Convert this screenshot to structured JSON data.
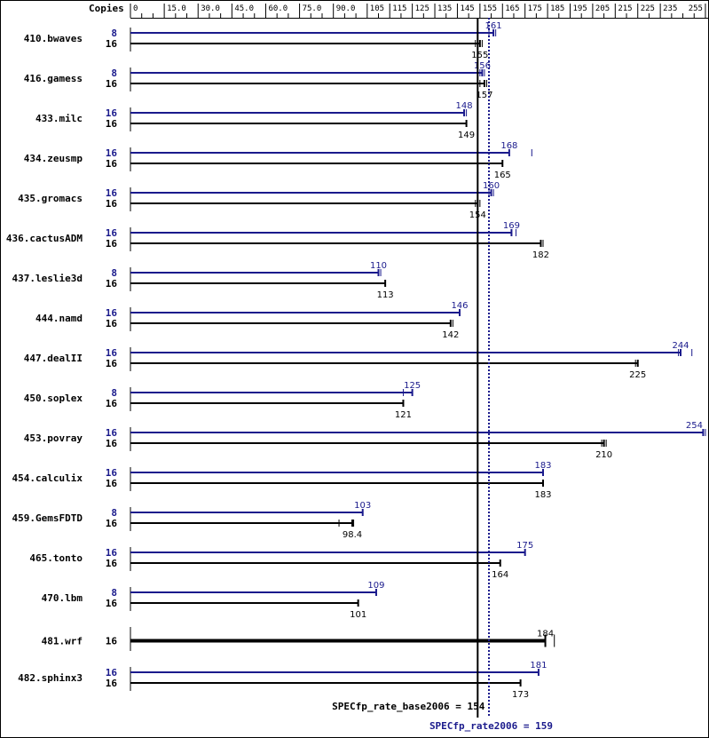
{
  "chart_data": {
    "type": "bar",
    "axis_title": "Copies",
    "tick_labels": [
      "0",
      "15.0",
      "30.0",
      "45.0",
      "60.0",
      "75.0",
      "90.0",
      "105",
      "115",
      "125",
      "135",
      "145",
      "155",
      "165",
      "175",
      "185",
      "195",
      "205",
      "215",
      "225",
      "235",
      "255"
    ],
    "tick_values": [
      0,
      15,
      30,
      45,
      60,
      75,
      90,
      105,
      115,
      125,
      135,
      145,
      155,
      165,
      175,
      185,
      195,
      205,
      215,
      225,
      235,
      255
    ],
    "xlim": [
      0,
      255
    ],
    "colors": {
      "base": "#000000",
      "peak": "#1a1a8c"
    },
    "series": [
      {
        "name": "SPECfp_rate_base2006",
        "key": "base"
      },
      {
        "name": "SPECfp_rate2006",
        "key": "peak"
      }
    ],
    "benchmarks": [
      {
        "name": "410.bwaves",
        "peak": {
          "copies": "8",
          "value": 161,
          "label": "161",
          "min": 159,
          "max": 162
        },
        "base": {
          "copies": "16",
          "value": 155,
          "label": "155",
          "min": 153,
          "max": 156
        }
      },
      {
        "name": "416.gamess",
        "peak": {
          "copies": "8",
          "value": 156,
          "label": "156",
          "min": 155,
          "max": 157
        },
        "base": {
          "copies": "16",
          "value": 157,
          "label": "157",
          "min": 155,
          "max": 158
        }
      },
      {
        "name": "433.milc",
        "peak": {
          "copies": "16",
          "value": 148,
          "label": "148",
          "min": 148,
          "max": 149
        },
        "base": {
          "copies": "16",
          "value": 149,
          "label": "149",
          "min": 149,
          "max": 149
        }
      },
      {
        "name": "434.zeusmp",
        "peak": {
          "copies": "16",
          "value": 168,
          "label": "168",
          "min": 168,
          "max": 178
        },
        "base": {
          "copies": "16",
          "value": 165,
          "label": "165",
          "min": 165,
          "max": 165
        }
      },
      {
        "name": "435.gromacs",
        "peak": {
          "copies": "16",
          "value": 160,
          "label": "160",
          "min": 159,
          "max": 161
        },
        "base": {
          "copies": "16",
          "value": 154,
          "label": "154",
          "min": 153,
          "max": 155
        }
      },
      {
        "name": "436.cactusADM",
        "peak": {
          "copies": "16",
          "value": 169,
          "label": "169",
          "min": 169,
          "max": 171
        },
        "base": {
          "copies": "16",
          "value": 182,
          "label": "182",
          "min": 182,
          "max": 183
        }
      },
      {
        "name": "437.leslie3d",
        "peak": {
          "copies": "8",
          "value": 110,
          "label": "110",
          "min": 110,
          "max": 111
        },
        "base": {
          "copies": "16",
          "value": 113,
          "label": "113",
          "min": 113,
          "max": 113
        }
      },
      {
        "name": "444.namd",
        "peak": {
          "copies": "16",
          "value": 146,
          "label": "146",
          "min": 146,
          "max": 146
        },
        "base": {
          "copies": "16",
          "value": 142,
          "label": "142",
          "min": 142,
          "max": 143
        }
      },
      {
        "name": "447.dealII",
        "peak": {
          "copies": "16",
          "value": 244,
          "label": "244",
          "min": 243,
          "max": 249
        },
        "base": {
          "copies": "16",
          "value": 225,
          "label": "225",
          "min": 224,
          "max": 225
        }
      },
      {
        "name": "450.soplex",
        "peak": {
          "copies": "8",
          "value": 125,
          "label": "125",
          "min": 121,
          "max": 125
        },
        "base": {
          "copies": "16",
          "value": 121,
          "label": "121",
          "min": 121,
          "max": 121
        }
      },
      {
        "name": "453.povray",
        "peak": {
          "copies": "16",
          "value": 254,
          "label": "254",
          "min": 254,
          "max": 255
        },
        "base": {
          "copies": "16",
          "value": 210,
          "label": "210",
          "min": 209,
          "max": 211
        }
      },
      {
        "name": "454.calculix",
        "peak": {
          "copies": "16",
          "value": 183,
          "label": "183",
          "min": 183,
          "max": 183
        },
        "base": {
          "copies": "16",
          "value": 183,
          "label": "183",
          "min": 183,
          "max": 183
        }
      },
      {
        "name": "459.GemsFDTD",
        "peak": {
          "copies": "8",
          "value": 103,
          "label": "103",
          "min": 103,
          "max": 103
        },
        "base": {
          "copies": "16",
          "value": 98.4,
          "label": "98.4",
          "min": 92.5,
          "max": 99
        }
      },
      {
        "name": "465.tonto",
        "peak": {
          "copies": "16",
          "value": 175,
          "label": "175",
          "min": 175,
          "max": 175
        },
        "base": {
          "copies": "16",
          "value": 164,
          "label": "164",
          "min": 164,
          "max": 164
        }
      },
      {
        "name": "470.lbm",
        "peak": {
          "copies": "8",
          "value": 109,
          "label": "109",
          "min": 109,
          "max": 109
        },
        "base": {
          "copies": "16",
          "value": 101,
          "label": "101",
          "min": 101,
          "max": 101
        }
      },
      {
        "name": "481.wrf",
        "single": true,
        "base": {
          "copies": "16",
          "value": 184,
          "label": "184",
          "min": 184,
          "max": 188
        }
      },
      {
        "name": "482.sphinx3",
        "peak": {
          "copies": "16",
          "value": 181,
          "label": "181",
          "min": 181,
          "max": 181
        },
        "base": {
          "copies": "16",
          "value": 173,
          "label": "173",
          "min": 173,
          "max": 173
        }
      }
    ],
    "summary": {
      "base": {
        "label": "SPECfp_rate_base2006 = 154",
        "value": 154
      },
      "peak": {
        "label": "SPECfp_rate2006 = 159",
        "value": 159
      }
    }
  }
}
